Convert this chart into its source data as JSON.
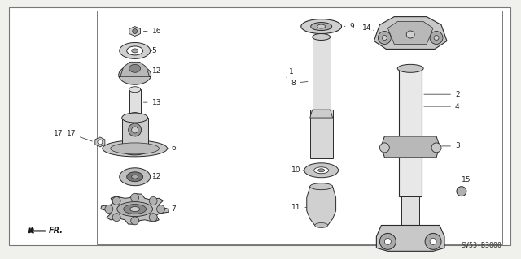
{
  "bg_color": "#f0f0ec",
  "border_color": "#666666",
  "line_color": "#2a2a2a",
  "diagram_code": "SV53-B3000",
  "fr_label": "FR.",
  "label_fs": 6.5,
  "label_color": "#222222"
}
